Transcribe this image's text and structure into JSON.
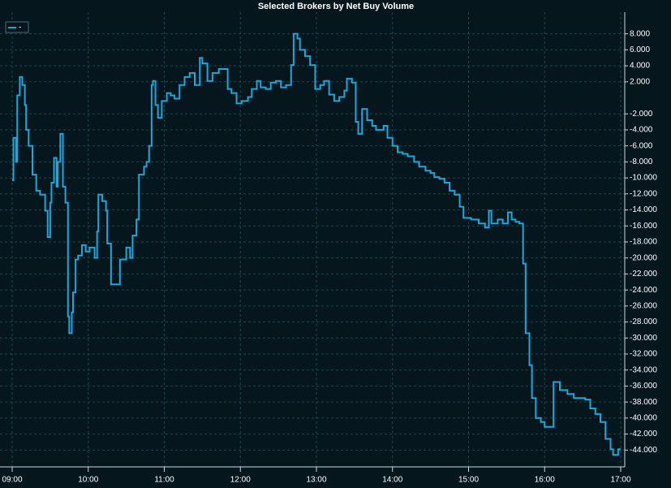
{
  "chart_data": {
    "type": "step",
    "title": "Selected Brokers by Net Buy Volume",
    "x": [
      "09:00",
      "09:01",
      "09:03",
      "09:04",
      "09:06",
      "09:08",
      "09:10",
      "09:11",
      "09:13",
      "09:16",
      "09:19",
      "09:22",
      "09:26",
      "09:28",
      "09:30",
      "09:31",
      "09:33",
      "09:35",
      "09:36",
      "09:38",
      "09:40",
      "09:42",
      "09:44",
      "09:45",
      "09:47",
      "09:48",
      "09:50",
      "09:52",
      "09:55",
      "09:58",
      "10:01",
      "10:05",
      "10:07",
      "10:08",
      "10:11",
      "10:14",
      "10:15",
      "10:18",
      "10:22",
      "10:25",
      "10:30",
      "10:33",
      "10:35",
      "10:38",
      "10:40",
      "10:44",
      "10:46",
      "10:48",
      "10:50",
      "10:51",
      "10:53",
      "10:55",
      "10:58",
      "11:02",
      "11:05",
      "11:08",
      "11:12",
      "11:16",
      "11:20",
      "11:24",
      "11:28",
      "11:30",
      "11:34",
      "11:38",
      "11:43",
      "11:47",
      "11:50",
      "11:53",
      "11:57",
      "12:01",
      "12:06",
      "12:09",
      "12:13",
      "12:16",
      "12:20",
      "12:24",
      "12:28",
      "12:32",
      "12:36",
      "12:40",
      "12:42",
      "12:45",
      "12:47",
      "12:51",
      "12:55",
      "12:59",
      "13:03",
      "13:06",
      "13:10",
      "13:14",
      "13:18",
      "13:22",
      "13:24",
      "13:28",
      "13:31",
      "13:33",
      "13:36",
      "13:40",
      "13:44",
      "13:47",
      "13:53",
      "13:56",
      "14:00",
      "14:04",
      "14:08",
      "14:12",
      "14:17",
      "14:21",
      "14:26",
      "14:30",
      "14:33",
      "14:37",
      "14:41",
      "14:45",
      "14:49",
      "14:53",
      "14:56",
      "15:02",
      "15:08",
      "15:13",
      "15:16",
      "15:18",
      "15:23",
      "15:27",
      "15:31",
      "15:34",
      "15:37",
      "15:40",
      "15:43",
      "15:45",
      "15:48",
      "15:50",
      "15:53",
      "15:57",
      "16:00",
      "16:06",
      "16:07",
      "16:12",
      "16:18",
      "16:23",
      "16:29",
      "16:32",
      "16:36",
      "16:40",
      "16:44",
      "16:48",
      "16:52",
      "16:54",
      "16:58",
      "17:00"
    ],
    "series": [
      {
        "name": "-",
        "color": "#1ea7dc",
        "values": [
          -10300,
          -5000,
          -8000,
          300,
          2600,
          1600,
          -900,
          -4000,
          -6000,
          -9600,
          -11600,
          -12100,
          -14100,
          -17400,
          -13100,
          -10600,
          -7500,
          -11100,
          -8000,
          -4500,
          -11100,
          -13100,
          -27300,
          -29400,
          -26800,
          -24300,
          -20200,
          -19700,
          -18400,
          -19200,
          -18700,
          -20000,
          -16700,
          -12100,
          -12900,
          -14100,
          -18200,
          -23300,
          -23300,
          -20200,
          -18700,
          -20000,
          -17200,
          -15200,
          -9600,
          -8600,
          -8000,
          -6000,
          1600,
          2100,
          -900,
          -2500,
          -400,
          600,
          300,
          -100,
          1600,
          2600,
          3100,
          1600,
          5000,
          4300,
          2100,
          3100,
          3600,
          3600,
          1100,
          600,
          -700,
          -400,
          100,
          1100,
          2100,
          1300,
          1100,
          1900,
          2100,
          1300,
          1600,
          4100,
          8000,
          7400,
          6000,
          5200,
          4100,
          1100,
          1600,
          2100,
          400,
          -400,
          100,
          900,
          2400,
          1900,
          -3000,
          -4500,
          -1400,
          -2800,
          -3500,
          -4000,
          -3500,
          -5000,
          -6000,
          -6800,
          -7000,
          -7300,
          -8000,
          -8600,
          -9100,
          -9400,
          -9900,
          -10100,
          -10600,
          -11600,
          -12100,
          -13600,
          -15000,
          -15200,
          -15700,
          -16200,
          -14100,
          -15700,
          -15200,
          -15700,
          -14300,
          -15200,
          -15500,
          -15700,
          -20700,
          -29400,
          -33400,
          -37500,
          -40000,
          -40500,
          -41100,
          -41100,
          -35500,
          -36500,
          -37000,
          -37500,
          -37500,
          -37700,
          -38800,
          -39500,
          -40500,
          -42600,
          -43900,
          -44600,
          -43900,
          -43900
        ]
      }
    ],
    "xlim": [
      "09:00",
      "17:00"
    ],
    "xticks": [
      "09:00",
      "10:00",
      "11:00",
      "12:00",
      "13:00",
      "14:00",
      "15:00",
      "16:00",
      "17:00"
    ],
    "ylim": [
      -46100,
      10700
    ],
    "yticks": [
      {
        "value": 8000,
        "label": "8.000"
      },
      {
        "value": 6000,
        "label": "6.000"
      },
      {
        "value": 4000,
        "label": "4.000"
      },
      {
        "value": 2000,
        "label": "2.000"
      },
      {
        "value": -2000,
        "label": "-2.000"
      },
      {
        "value": -4000,
        "label": "-4.000"
      },
      {
        "value": -6000,
        "label": "-6.000"
      },
      {
        "value": -8000,
        "label": "-8.000"
      },
      {
        "value": -10000,
        "label": "-10.000"
      },
      {
        "value": -12000,
        "label": "-12.000"
      },
      {
        "value": -14000,
        "label": "-14.000"
      },
      {
        "value": -16000,
        "label": "-16.000"
      },
      {
        "value": -18000,
        "label": "-18.000"
      },
      {
        "value": -20000,
        "label": "-20.000"
      },
      {
        "value": -22000,
        "label": "-22.000"
      },
      {
        "value": -24000,
        "label": "-24.000"
      },
      {
        "value": -26000,
        "label": "-26.000"
      },
      {
        "value": -28000,
        "label": "-28.000"
      },
      {
        "value": -30000,
        "label": "-30.000"
      },
      {
        "value": -32000,
        "label": "-32.000"
      },
      {
        "value": -34000,
        "label": "-34.000"
      },
      {
        "value": -36000,
        "label": "-36.000"
      },
      {
        "value": -38000,
        "label": "-38.000"
      },
      {
        "value": -40000,
        "label": "-40.000"
      },
      {
        "value": -42000,
        "label": "-42.000"
      },
      {
        "value": -44000,
        "label": "-44.000"
      }
    ],
    "grid": true,
    "legend": "top-left"
  }
}
